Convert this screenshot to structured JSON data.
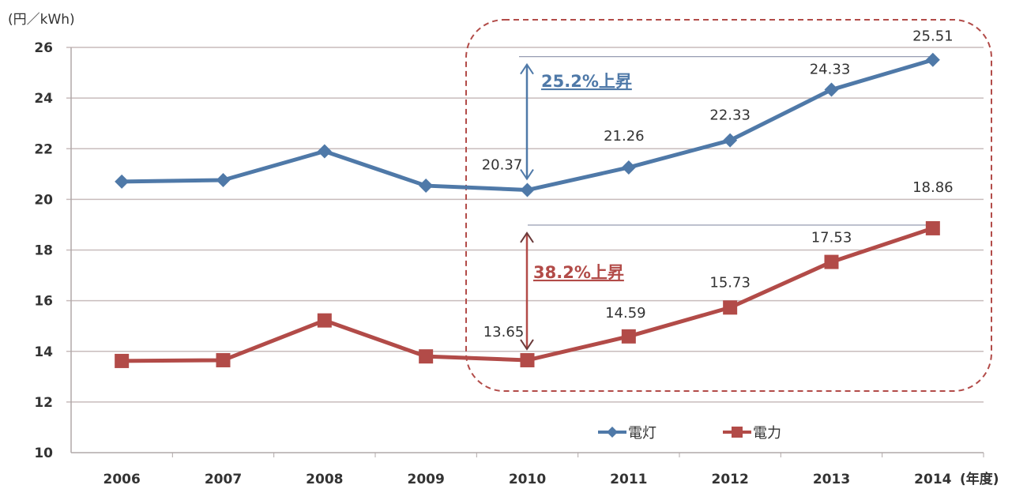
{
  "chart_data": {
    "type": "line",
    "title": "",
    "ylabel": "(円／kWh)",
    "xlabel": "(年度)",
    "categories": [
      "2006",
      "2007",
      "2008",
      "2009",
      "2010",
      "2011",
      "2012",
      "2013",
      "2014"
    ],
    "ylim": [
      10,
      26
    ],
    "yticks": [
      "10",
      "12",
      "14",
      "16",
      "18",
      "20",
      "22",
      "24",
      "26"
    ],
    "grid": true,
    "legend_position": "bottom-center",
    "series": [
      {
        "name": "電灯",
        "color": "#4f79a8",
        "marker": "diamond",
        "values": [
          20.7,
          20.76,
          21.9,
          20.54,
          20.37,
          21.26,
          22.33,
          24.33,
          25.51
        ],
        "labels": [
          "",
          "",
          "",
          "",
          "20.37",
          "21.26",
          "22.33",
          "24.33",
          "25.51"
        ]
      },
      {
        "name": "電力",
        "color": "#b24b48",
        "marker": "square",
        "values": [
          13.62,
          13.65,
          15.22,
          13.8,
          13.65,
          14.59,
          15.73,
          17.53,
          18.86
        ],
        "labels": [
          "",
          "",
          "",
          "",
          "13.65",
          "14.59",
          "15.73",
          "17.53",
          "18.86"
        ]
      }
    ],
    "annotations": [
      {
        "text": "25.2%上昇",
        "color": "#4f79a8",
        "from": 20.37,
        "to": 25.51
      },
      {
        "text": "38.2%上昇",
        "color": "#b24b48",
        "from": 13.65,
        "to": 18.86
      }
    ],
    "highlight_box_color": "#b24b48"
  }
}
